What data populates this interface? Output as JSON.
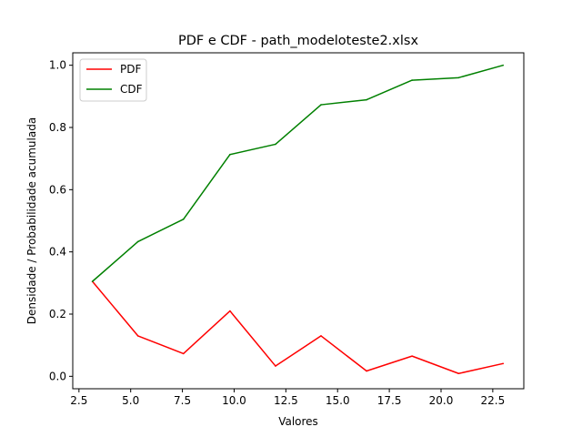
{
  "chart_data": {
    "type": "line",
    "title": "PDF e CDF - path_modeloteste2.xlsx",
    "xlabel": "Valores",
    "ylabel": "Densidade / Probabilidade acumulada",
    "xlim": [
      2.2,
      24.0
    ],
    "ylim": [
      -0.04,
      1.04
    ],
    "xticks": [
      "2.5",
      "5.0",
      "7.5",
      "10.0",
      "12.5",
      "15.0",
      "17.5",
      "20.0",
      "22.5"
    ],
    "yticks": [
      "0.0",
      "0.2",
      "0.4",
      "0.6",
      "0.8",
      "1.0"
    ],
    "x": [
      3.15,
      5.35,
      7.55,
      9.8,
      12.0,
      14.2,
      16.4,
      18.6,
      20.85,
      23.0
    ],
    "grid": false,
    "legend_position": "top-left",
    "series": [
      {
        "name": "PDF",
        "color": "#ff0000",
        "values": [
          0.305,
          0.13,
          0.073,
          0.21,
          0.033,
          0.13,
          0.017,
          0.065,
          0.009,
          0.041
        ]
      },
      {
        "name": "CDF",
        "color": "#008000",
        "values": [
          0.305,
          0.433,
          0.505,
          0.713,
          0.746,
          0.873,
          0.889,
          0.952,
          0.96,
          1.0
        ]
      }
    ]
  }
}
